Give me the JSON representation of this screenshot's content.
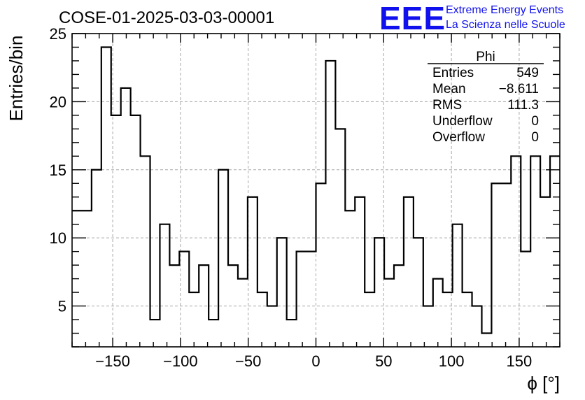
{
  "header": {
    "title": "COSE-01-2025-03-03-00001",
    "logo_mark": "EEE",
    "logo_line1": "Extreme Energy Events",
    "logo_line2": "La Scienza nelle Scuole",
    "logo_color": "#1111ee"
  },
  "stats": {
    "name": "Phi",
    "rows": [
      {
        "label": "Entries",
        "value": "549"
      },
      {
        "label": "Mean",
        "value": "−8.611"
      },
      {
        "label": "RMS",
        "value": "111.3"
      },
      {
        "label": "Underflow",
        "value": "0"
      },
      {
        "label": "Overflow",
        "value": "0"
      }
    ]
  },
  "chart_data": {
    "type": "histogram",
    "xlabel": "ϕ [°]",
    "ylabel": "Entries/bin",
    "xlim": [
      -180,
      180
    ],
    "ylim": [
      2,
      25
    ],
    "bin_width": 7.2,
    "bin_edges_start": -180,
    "values": [
      12,
      12,
      15,
      24,
      19,
      21,
      19,
      16,
      4,
      11,
      8,
      9,
      6,
      8,
      4,
      15,
      8,
      7,
      13,
      6,
      5,
      10,
      4,
      9,
      9,
      14,
      23,
      18,
      12,
      13,
      6,
      10,
      7,
      8,
      13,
      10,
      5,
      7,
      6,
      11,
      6,
      5,
      3,
      14,
      14,
      16,
      9,
      16,
      13,
      16
    ],
    "x_ticks": [
      -150,
      -100,
      -50,
      0,
      50,
      100,
      150
    ],
    "x_tick_labels": [
      "−150",
      "−100",
      "−50",
      "0",
      "50",
      "100",
      "150"
    ],
    "y_ticks": [
      5,
      10,
      15,
      20,
      25
    ],
    "y_tick_labels": [
      "5",
      "10",
      "15",
      "20",
      "25"
    ],
    "grid": true,
    "line_color": "#000000"
  }
}
